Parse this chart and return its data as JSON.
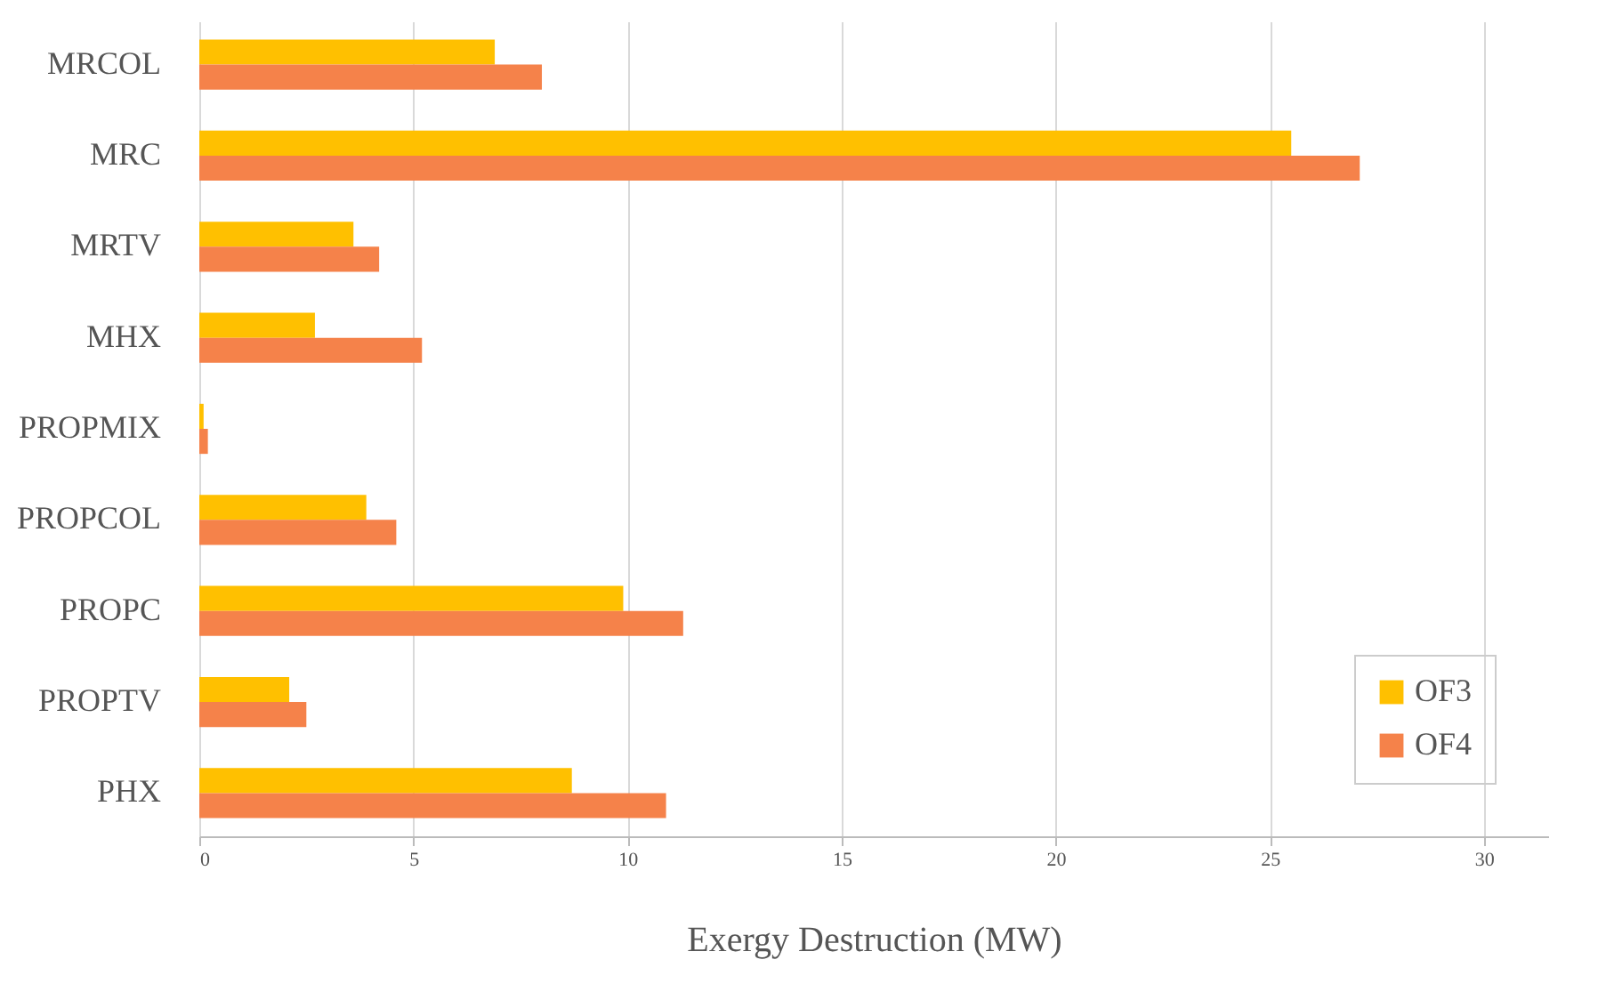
{
  "chart_data": {
    "type": "bar",
    "orientation": "horizontal",
    "xlabel": "Exergy Destruction (MW)",
    "categories": [
      "MRCOL",
      "MRC",
      "MRTV",
      "MHX",
      "PROPMIX",
      "PROPCOL",
      "PROPC",
      "PROPTV",
      "PHX"
    ],
    "series": [
      {
        "name": "OF3",
        "color": "#ffc000",
        "values": [
          6.9,
          25.5,
          3.6,
          2.7,
          0.1,
          3.9,
          9.9,
          2.1,
          8.7
        ]
      },
      {
        "name": "OF4",
        "color": "#f5824a",
        "values": [
          8.0,
          27.1,
          4.2,
          5.2,
          0.2,
          4.6,
          11.3,
          2.5,
          10.9
        ]
      }
    ],
    "xlim": [
      0,
      31.5
    ],
    "xticks": [
      0,
      5,
      10,
      15,
      20,
      25,
      30
    ],
    "grid": "x",
    "legend": "bottom right"
  }
}
